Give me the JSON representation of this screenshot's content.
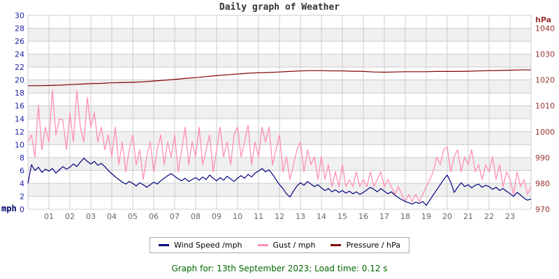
{
  "title": "Daily graph of Weather",
  "footer": {
    "text": "Graph for: 13th September 2023; Load time: 0.12 s"
  },
  "legend": {
    "items": [
      {
        "label": "Wind Speed /mph",
        "color": "#000080"
      },
      {
        "label": "Gust / mph",
        "color": "#ff8fb6"
      },
      {
        "label": "Pressure / hPa",
        "color": "#800000"
      }
    ]
  },
  "chart_data": {
    "type": "line",
    "title": "Daily graph of Weather",
    "x_hours_range": [
      0,
      24
    ],
    "x_tick_labels": [
      "01",
      "02",
      "03",
      "04",
      "05",
      "06",
      "07",
      "08",
      "09",
      "10",
      "11",
      "12",
      "13",
      "14",
      "15",
      "16",
      "17",
      "18",
      "19",
      "20",
      "21",
      "22",
      "23"
    ],
    "x_tick_color": "#666666",
    "grid": {
      "line_color": "#cccccc",
      "band_colors": [
        "#ffffff",
        "#f0f0f0"
      ]
    },
    "left_axis": {
      "unit": "mph",
      "unit_color": "#000066",
      "min": 0,
      "max": 30,
      "tick_step": 2,
      "tick_color": "#2222aa"
    },
    "right_axis": {
      "unit": "hPa",
      "unit_color": "#993333",
      "min": 970,
      "max": 1045,
      "tick_min": 970,
      "tick_max": 1040,
      "tick_step": 10,
      "tick_color": "#993333"
    },
    "series": [
      {
        "name": "Gust / mph",
        "axis": "left",
        "color": "#ff8fb6",
        "width": 1.3,
        "interval_min": 10,
        "values": [
          10.5,
          11.5,
          8.1,
          16.1,
          9.2,
          12.7,
          10.4,
          18.4,
          11.5,
          14.0,
          13.8,
          9.2,
          14.9,
          10.4,
          18.4,
          12.7,
          10.4,
          17.3,
          12.7,
          15.0,
          10.4,
          12.7,
          9.2,
          11.5,
          8.1,
          12.7,
          6.9,
          10.4,
          5.8,
          9.2,
          11.5,
          6.9,
          9.2,
          4.6,
          8.1,
          10.4,
          5.8,
          9.2,
          11.5,
          6.9,
          10.4,
          8.1,
          11.5,
          5.8,
          9.2,
          12.7,
          6.9,
          10.4,
          8.1,
          12.7,
          6.9,
          9.2,
          11.5,
          5.8,
          9.2,
          12.7,
          8.1,
          10.4,
          6.9,
          11.5,
          12.7,
          8.1,
          10.4,
          13.0,
          6.9,
          10.4,
          8.1,
          12.7,
          10.4,
          12.7,
          6.9,
          9.2,
          11.5,
          5.8,
          8.1,
          4.6,
          6.9,
          9.2,
          10.4,
          5.8,
          9.2,
          6.9,
          8.1,
          4.6,
          8.1,
          4.6,
          6.9,
          3.5,
          5.8,
          3.5,
          6.9,
          3.5,
          4.6,
          3.5,
          5.8,
          3.5,
          4.6,
          3.5,
          5.8,
          3.5,
          4.6,
          5.8,
          3.5,
          4.6,
          3.5,
          2.3,
          3.5,
          2.3,
          1.2,
          2.3,
          1.2,
          2.3,
          1.2,
          2.3,
          3.5,
          4.6,
          5.8,
          8.1,
          6.9,
          9.2,
          9.7,
          5.8,
          8.1,
          9.2,
          5.8,
          8.1,
          6.9,
          9.2,
          5.8,
          6.9,
          4.6,
          6.9,
          5.8,
          8.1,
          4.6,
          6.9,
          3.5,
          5.8,
          4.6,
          2.3,
          5.8,
          3.5,
          4.6,
          2.3,
          3.5
        ]
      },
      {
        "name": "Wind Speed /mph",
        "axis": "left",
        "color": "#000080",
        "width": 1.2,
        "interval_min": 10,
        "values": [
          4.0,
          6.9,
          6.0,
          6.5,
          5.7,
          6.2,
          5.9,
          6.3,
          5.6,
          6.1,
          6.6,
          6.2,
          6.5,
          7.0,
          6.6,
          7.3,
          7.9,
          7.4,
          7.0,
          7.4,
          6.8,
          7.1,
          6.6,
          6.0,
          5.5,
          5.0,
          4.6,
          4.2,
          3.9,
          4.3,
          4.0,
          3.6,
          4.1,
          3.8,
          3.4,
          3.8,
          4.2,
          3.9,
          4.4,
          4.8,
          5.2,
          5.5,
          5.1,
          4.7,
          4.4,
          4.8,
          4.3,
          4.6,
          4.9,
          4.5,
          5.0,
          4.6,
          5.3,
          4.8,
          4.4,
          4.9,
          4.5,
          5.1,
          4.7,
          4.3,
          4.8,
          5.2,
          4.8,
          5.4,
          5.0,
          5.6,
          5.9,
          6.3,
          5.8,
          6.1,
          5.4,
          4.6,
          3.8,
          3.2,
          2.4,
          1.9,
          2.8,
          3.6,
          4.1,
          3.7,
          4.3,
          3.9,
          3.5,
          3.8,
          3.3,
          2.9,
          3.2,
          2.7,
          3.0,
          2.6,
          2.9,
          2.5,
          2.8,
          2.4,
          2.7,
          2.3,
          2.6,
          3.0,
          3.4,
          3.1,
          2.7,
          3.2,
          2.8,
          2.4,
          2.7,
          2.2,
          1.8,
          1.5,
          1.2,
          1.0,
          0.8,
          1.1,
          0.9,
          1.2,
          0.6,
          1.4,
          2.2,
          3.0,
          3.8,
          4.6,
          5.3,
          4.2,
          2.6,
          3.4,
          4.1,
          3.5,
          3.8,
          3.3,
          3.7,
          3.9,
          3.4,
          3.7,
          3.5,
          3.1,
          3.4,
          2.9,
          3.2,
          2.8,
          2.4,
          2.0,
          2.6,
          2.2,
          1.7,
          1.4,
          1.6
        ]
      },
      {
        "name": "Pressure / hPa",
        "axis": "right",
        "color": "#800000",
        "width": 1.2,
        "interval_min": 30,
        "values": [
          1017.8,
          1017.8,
          1017.9,
          1018.0,
          1018.2,
          1018.4,
          1018.6,
          1018.7,
          1018.9,
          1019.0,
          1019.1,
          1019.3,
          1019.6,
          1019.9,
          1020.2,
          1020.6,
          1020.9,
          1021.3,
          1021.7,
          1022.0,
          1022.3,
          1022.6,
          1022.8,
          1022.9,
          1023.1,
          1023.3,
          1023.5,
          1023.6,
          1023.6,
          1023.5,
          1023.5,
          1023.4,
          1023.3,
          1023.1,
          1023.0,
          1023.1,
          1023.2,
          1023.2,
          1023.2,
          1023.3,
          1023.3,
          1023.3,
          1023.4,
          1023.5,
          1023.6,
          1023.7,
          1023.8,
          1023.9,
          1023.9
        ]
      }
    ]
  }
}
